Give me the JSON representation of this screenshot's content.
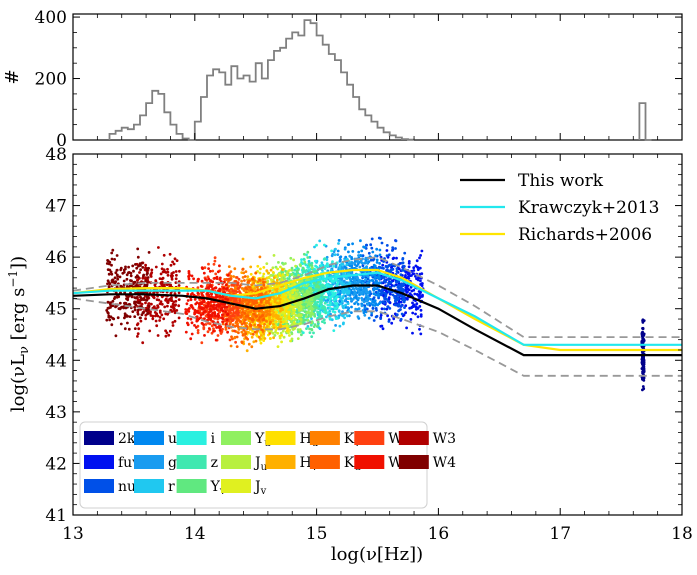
{
  "chart_data": [
    {
      "type": "histogram",
      "ylabel": "#",
      "xlim": [
        13,
        18
      ],
      "ylim": [
        0,
        410
      ],
      "yticks": [
        0,
        200,
        400
      ],
      "color": "#808080",
      "bin_width": 0.05,
      "bins_start": [
        13.3,
        13.35,
        13.4,
        13.45,
        13.5,
        13.55,
        13.6,
        13.65,
        13.7,
        13.75,
        13.8,
        13.85,
        13.9,
        13.95,
        14.0,
        14.05,
        14.1,
        14.15,
        14.2,
        14.25,
        14.3,
        14.35,
        14.4,
        14.45,
        14.5,
        14.55,
        14.6,
        14.65,
        14.7,
        14.75,
        14.8,
        14.85,
        14.9,
        14.95,
        15.0,
        15.05,
        15.1,
        15.15,
        15.2,
        15.25,
        15.3,
        15.35,
        15.4,
        15.45,
        15.5,
        15.55,
        15.6,
        15.65,
        15.7,
        15.75,
        17.65,
        17.7
      ],
      "counts": [
        20,
        30,
        40,
        35,
        50,
        80,
        120,
        160,
        150,
        90,
        50,
        20,
        5,
        0,
        60,
        140,
        210,
        230,
        220,
        180,
        240,
        200,
        210,
        190,
        250,
        200,
        260,
        290,
        300,
        330,
        350,
        340,
        390,
        380,
        340,
        310,
        280,
        260,
        220,
        180,
        140,
        100,
        80,
        60,
        40,
        25,
        15,
        8,
        3,
        1,
        120,
        0
      ]
    },
    {
      "type": "scatter+line",
      "xlabel": "log(ν[Hz])",
      "ylabel": "log(νL_ν [erg s⁻¹])",
      "xlim": [
        13,
        18
      ],
      "ylim": [
        41,
        48
      ],
      "xticks": [
        13,
        14,
        15,
        16,
        17,
        18
      ],
      "yticks": [
        41,
        42,
        43,
        44,
        45,
        46,
        47,
        48
      ],
      "lines": [
        {
          "name": "This work",
          "color": "#000000",
          "x": [
            13.0,
            13.3,
            13.6,
            13.9,
            14.1,
            14.3,
            14.5,
            14.7,
            14.9,
            15.1,
            15.3,
            15.5,
            15.7,
            16.0,
            16.3,
            16.7,
            17.0,
            18.0
          ],
          "y": [
            45.25,
            45.28,
            45.28,
            45.25,
            45.2,
            45.1,
            45.0,
            45.05,
            45.2,
            45.38,
            45.45,
            45.45,
            45.3,
            45.0,
            44.6,
            44.1,
            44.1,
            44.1
          ]
        },
        {
          "name": "Krawczyk+2013",
          "color": "#22e8ee",
          "x": [
            13.0,
            13.3,
            13.6,
            13.9,
            14.1,
            14.3,
            14.5,
            14.7,
            14.9,
            15.1,
            15.3,
            15.5,
            15.7,
            16.0,
            16.3,
            16.7,
            17.0,
            18.0
          ],
          "y": [
            45.3,
            45.35,
            45.35,
            45.35,
            45.35,
            45.25,
            45.2,
            45.3,
            45.5,
            45.6,
            45.65,
            45.7,
            45.55,
            45.2,
            44.85,
            44.3,
            44.3,
            44.3
          ]
        },
        {
          "name": "Richards+2006",
          "color": "#ffe500",
          "x": [
            13.0,
            13.3,
            13.6,
            13.9,
            14.1,
            14.3,
            14.5,
            14.7,
            14.9,
            15.1,
            15.3,
            15.5,
            15.7,
            16.0,
            16.3,
            16.7,
            17.0,
            18.0
          ],
          "y": [
            45.3,
            45.38,
            45.4,
            45.4,
            45.35,
            45.25,
            45.3,
            45.45,
            45.6,
            45.7,
            45.75,
            45.75,
            45.6,
            45.2,
            44.8,
            44.3,
            44.2,
            44.2
          ]
        },
        {
          "name": "",
          "color": "#999999",
          "dashed": true,
          "x": [
            13.0,
            13.3,
            13.6,
            13.9,
            14.1,
            14.3,
            14.5,
            14.7,
            14.9,
            15.1,
            15.3,
            15.5,
            15.7,
            16.0,
            16.3,
            16.7,
            17.0,
            18.0
          ],
          "y": [
            45.35,
            45.45,
            45.5,
            45.5,
            45.5,
            45.5,
            45.45,
            45.5,
            45.65,
            45.85,
            45.95,
            46.0,
            45.8,
            45.45,
            45.05,
            44.45,
            44.45,
            44.45
          ]
        },
        {
          "name": "",
          "color": "#999999",
          "dashed": true,
          "x": [
            13.0,
            13.3,
            13.6,
            13.9,
            14.1,
            14.3,
            14.5,
            14.7,
            14.9,
            15.1,
            15.3,
            15.5,
            15.7,
            16.0,
            16.3,
            16.7,
            17.0,
            18.0
          ],
          "y": [
            45.2,
            45.1,
            45.0,
            44.9,
            44.75,
            44.65,
            44.6,
            44.6,
            44.7,
            44.85,
            44.95,
            44.95,
            44.8,
            44.55,
            44.2,
            43.7,
            43.7,
            43.7
          ]
        }
      ],
      "bands": [
        {
          "name": "2keV",
          "color": "#00008b",
          "x": 17.68,
          "ymean": 44.1,
          "yspread": 0.7
        },
        {
          "name": "fuv",
          "color": "#0010f0",
          "x": 15.7,
          "ymean": 45.4,
          "yspread": 0.5
        },
        {
          "name": "nuv",
          "color": "#0050e8",
          "x": 15.55,
          "ymean": 45.5,
          "yspread": 0.5
        },
        {
          "name": "u",
          "color": "#0088f0",
          "x": 15.35,
          "ymean": 45.55,
          "yspread": 0.45
        },
        {
          "name": "g",
          "color": "#1a9cf0",
          "x": 15.25,
          "ymean": 45.5,
          "yspread": 0.45
        },
        {
          "name": "r",
          "color": "#20c8f0",
          "x": 15.1,
          "ymean": 45.4,
          "yspread": 0.45
        },
        {
          "name": "i",
          "color": "#2af0e0",
          "x": 15.0,
          "ymean": 45.35,
          "yspread": 0.45
        },
        {
          "name": "z",
          "color": "#40e8b0",
          "x": 14.9,
          "ymean": 45.25,
          "yspread": 0.45
        },
        {
          "name": "Y_v",
          "color": "#60e880",
          "x": 14.85,
          "ymean": 45.2,
          "yspread": 0.45
        },
        {
          "name": "Y_u",
          "color": "#90f060",
          "x": 14.8,
          "ymean": 45.2,
          "yspread": 0.45
        },
        {
          "name": "J_u",
          "color": "#b8f040",
          "x": 14.7,
          "ymean": 45.1,
          "yspread": 0.45
        },
        {
          "name": "J_v",
          "color": "#e0f020",
          "x": 14.65,
          "ymean": 45.1,
          "yspread": 0.45
        },
        {
          "name": "H_u",
          "color": "#ffe000",
          "x": 14.6,
          "ymean": 45.05,
          "yspread": 0.45
        },
        {
          "name": "H_v",
          "color": "#ffb000",
          "x": 14.55,
          "ymean": 45.05,
          "yspread": 0.45
        },
        {
          "name": "K_v",
          "color": "#ff8000",
          "x": 14.45,
          "ymean": 45.05,
          "yspread": 0.45
        },
        {
          "name": "K_u",
          "color": "#ff6000",
          "x": 14.4,
          "ymean": 45.05,
          "yspread": 0.45
        },
        {
          "name": "W1",
          "color": "#ff4010",
          "x": 14.2,
          "ymean": 45.1,
          "yspread": 0.45
        },
        {
          "name": "W2",
          "color": "#f01000",
          "x": 14.1,
          "ymean": 45.15,
          "yspread": 0.45
        },
        {
          "name": "W3",
          "color": "#b00000",
          "x": 13.7,
          "ymean": 45.25,
          "yspread": 0.5
        },
        {
          "name": "W4",
          "color": "#800000",
          "x": 13.45,
          "ymean": 45.35,
          "yspread": 0.5
        }
      ]
    }
  ]
}
